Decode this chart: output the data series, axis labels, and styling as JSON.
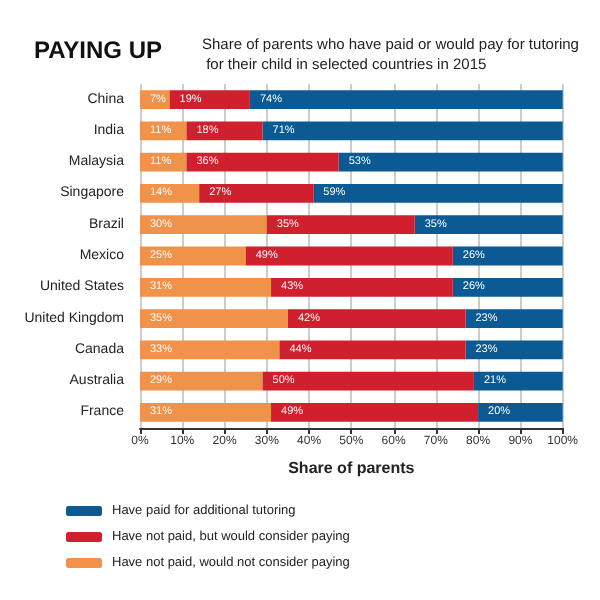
{
  "chart_data": {
    "type": "bar",
    "orientation": "horizontal",
    "stacked": true,
    "title": "PAYING UP",
    "subtitle": "Share of parents who have paid or would pay for tutoring for their child in selected countries in 2015",
    "xlabel": "Share of parents",
    "categories": [
      "China",
      "India",
      "Malaysia",
      "Singapore",
      "Brazil",
      "Mexico",
      "United States",
      "United Kingdom",
      "Canada",
      "Australia",
      "France"
    ],
    "series": [
      {
        "name": "Have not paid, would not consider paying",
        "color": "#f0924a",
        "values": [
          7,
          11,
          11,
          14,
          30,
          25,
          31,
          35,
          33,
          29,
          31
        ],
        "value_labels": [
          "7%",
          "11%",
          "11%",
          "14%",
          "30%",
          "25%",
          "31%",
          "35%",
          "33%",
          "29%",
          "31%"
        ]
      },
      {
        "name": "Have not paid, but would consider paying",
        "color": "#d0202e",
        "values": [
          19,
          18,
          36,
          27,
          35,
          49,
          43,
          42,
          44,
          50,
          49
        ],
        "value_labels": [
          "19%",
          "18%",
          "36%",
          "27%",
          "35%",
          "49%",
          "43%",
          "42%",
          "44%",
          "50%",
          "49%"
        ]
      },
      {
        "name": "Have paid for additional tutoring",
        "color": "#0b5a94",
        "values": [
          74,
          71,
          53,
          59,
          35,
          26,
          26,
          23,
          23,
          21,
          20
        ],
        "value_labels": [
          "74%",
          "71%",
          "53%",
          "59%",
          "35%",
          "26%",
          "26%",
          "23%",
          "23%",
          "21%",
          "20%"
        ]
      }
    ],
    "xlim": [
      0,
      100
    ],
    "xticks": [
      {
        "value": 0,
        "label": "0%"
      },
      {
        "value": 10,
        "label": "10%"
      },
      {
        "value": 20,
        "label": "20%"
      },
      {
        "value": 30,
        "label": "30%"
      },
      {
        "value": 40,
        "label": "40%"
      },
      {
        "value": 50,
        "label": "50%"
      },
      {
        "value": 60,
        "label": "60%"
      },
      {
        "value": 70,
        "label": "70%"
      },
      {
        "value": 80,
        "label": "80%"
      },
      {
        "value": 90,
        "label": "90%"
      },
      {
        "value": 100,
        "label": "100%"
      }
    ],
    "grid": "x",
    "legend": "bottom"
  }
}
